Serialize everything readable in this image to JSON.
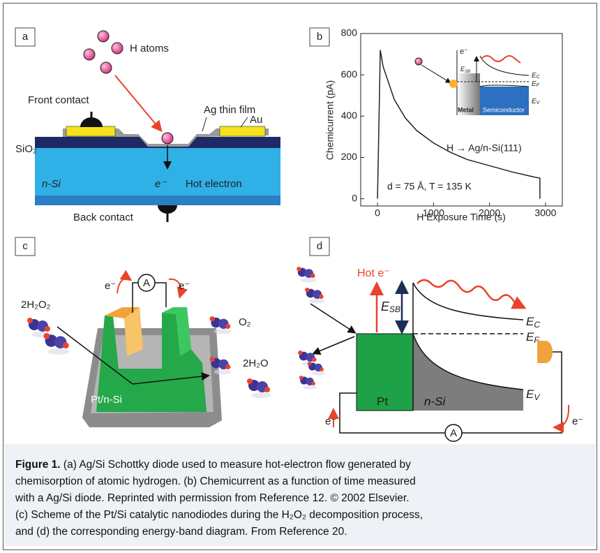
{
  "panel_a": {
    "label": "a",
    "texts": {
      "h_atoms": "H atoms",
      "front_contact": "Front contact",
      "ag_film": "Ag thin film",
      "au": "Au",
      "sio2": "SiO₂",
      "n_si": "n-Si",
      "electron": "e⁻",
      "hot_electron": "Hot electron",
      "back_contact": "Back contact"
    }
  },
  "chart_data": {
    "type": "line",
    "label": "b",
    "x_label": "H Exposure Time (s)",
    "y_label": "Chemicurrent (pA)",
    "x": [
      0,
      50,
      100,
      200,
      300,
      500,
      700,
      1000,
      1300,
      1600,
      2000,
      2400,
      2800,
      2900,
      2900
    ],
    "series": [
      {
        "name": "H → Ag/n-Si(111)",
        "color": "#222222",
        "values": [
          0,
          720,
          640,
          560,
          480,
          390,
          330,
          270,
          225,
          190,
          160,
          130,
          105,
          100,
          0
        ]
      }
    ],
    "xlim": [
      -300,
      3300
    ],
    "ylim": [
      -35,
      800
    ],
    "xticks": [
      0,
      1000,
      2000,
      3000
    ],
    "yticks": [
      0,
      200,
      400,
      600,
      800
    ],
    "annotations": [
      "H → Ag/n-Si(111)",
      "d = 75 Å, T = 135 K"
    ],
    "inset": {
      "electron": "e⁻",
      "e_sb": {
        "symbol": "E",
        "sub": "SB"
      },
      "e_c": {
        "symbol": "E",
        "sub": "C"
      },
      "e_f": {
        "symbol": "E",
        "sub": "F"
      },
      "e_v": {
        "symbol": "E",
        "sub": "V"
      },
      "metal": "Metal",
      "semiconductor": "Semiconductor"
    }
  },
  "panel_c": {
    "label": "c",
    "texts": {
      "e_left": "e⁻",
      "ammeter": "A",
      "e_right": "e⁻",
      "h2o2": "2H₂O₂",
      "o2": "O₂",
      "h2o": "2H₂O",
      "pt_n_si": "Pt/n-Si"
    }
  },
  "panel_d": {
    "label": "d",
    "texts": {
      "hot_e": "Hot e⁻",
      "e_sb": {
        "symbol": "E",
        "sub": "SB"
      },
      "e_c": {
        "symbol": "E",
        "sub": "C"
      },
      "e_f": {
        "symbol": "E",
        "sub": "F"
      },
      "e_v": {
        "symbol": "E",
        "sub": "V"
      },
      "pt": "Pt",
      "n_si": "n-Si",
      "ammeter": "A",
      "e_left": "e⁻",
      "e_right": "e⁻"
    }
  },
  "caption": {
    "label": "Figure 1.",
    "lines": [
      "(a) Ag/Si Schottky diode used to measure hot-electron flow generated by",
      "chemisorption of atomic hydrogen. (b) Chemicurrent as a function of time measured",
      "with a Ag/Si diode. Reprinted with permission from Reference 12. © 2002 Elsevier.",
      "(c) Scheme of the Pt/Si catalytic nanodiodes during the H₂O₂ decomposition process,",
      "and (d) the corresponding energy-band diagram. From Reference 20."
    ]
  }
}
